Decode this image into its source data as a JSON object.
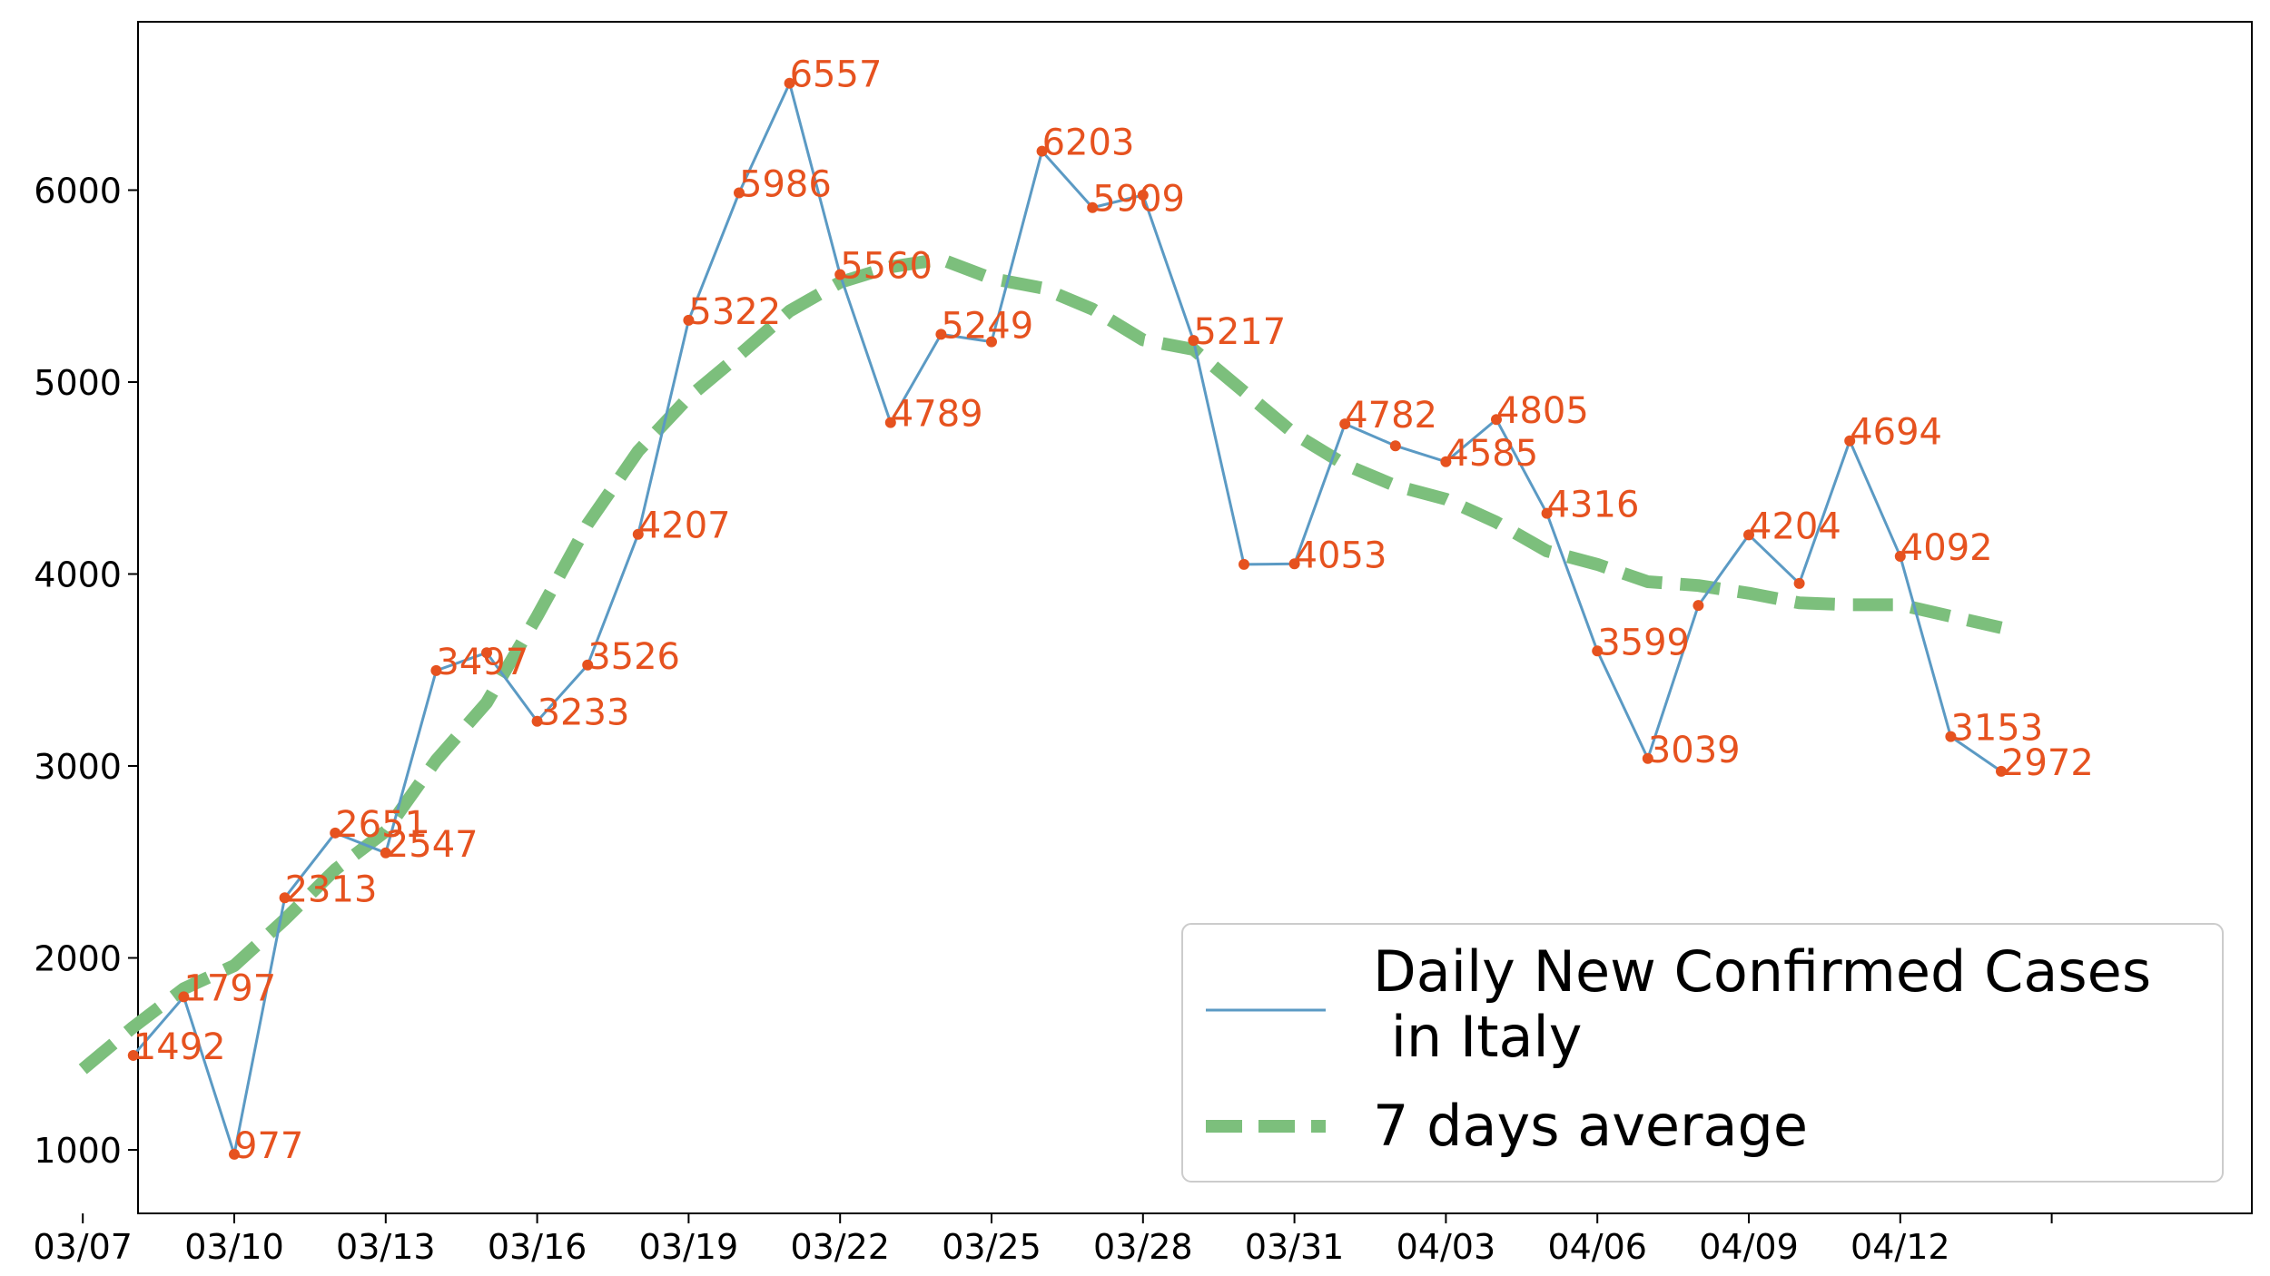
{
  "chart_data": {
    "type": "line",
    "title": "",
    "xlabel": "",
    "ylabel": "",
    "dates": [
      "03/08",
      "03/09",
      "03/10",
      "03/11",
      "03/12",
      "03/13",
      "03/14",
      "03/15",
      "03/16",
      "03/17",
      "03/18",
      "03/19",
      "03/20",
      "03/21",
      "03/22",
      "03/23",
      "03/24",
      "03/25",
      "03/26",
      "03/27",
      "03/28",
      "03/29",
      "03/30",
      "03/31",
      "04/01",
      "04/02",
      "04/03",
      "04/04",
      "04/05",
      "04/06",
      "04/07",
      "04/08",
      "04/09",
      "04/10",
      "04/11",
      "04/12",
      "04/13",
      "04/14"
    ],
    "x_ticks": [
      "03/07",
      "03/10",
      "03/13",
      "03/16",
      "03/19",
      "03/22",
      "03/25",
      "03/28",
      "03/31",
      "04/03",
      "04/06",
      "04/09",
      "04/12"
    ],
    "y_ticks": [
      1000,
      2000,
      3000,
      4000,
      5000,
      6000
    ],
    "ylim": [
      700,
      6900
    ],
    "series": [
      {
        "name": "Daily New Confirmed Cases\n in Italy",
        "legend_lines": [
          "Daily New Confirmed Cases",
          " in Italy"
        ],
        "color": "#5b9ac4",
        "marker_color": "#e6521f",
        "values": [
          1492,
          1797,
          977,
          2313,
          2651,
          2547,
          3497,
          3590,
          3233,
          3526,
          4207,
          5322,
          5986,
          6557,
          5560,
          4789,
          5249,
          5210,
          6203,
          5909,
          5974,
          5217,
          4050,
          4053,
          4782,
          4668,
          4585,
          4805,
          4316,
          3599,
          3039,
          3836,
          4204,
          3951,
          4694,
          4092,
          3153,
          2972
        ],
        "labels": [
          "1492",
          "1797",
          "977",
          "2313",
          "2651",
          "2547",
          "3497",
          "",
          "3233",
          "3526",
          "4207",
          "5322",
          "5986",
          "6557",
          "5560",
          "4789",
          "5249",
          "",
          "6203",
          "5909",
          "",
          "5217",
          "",
          "4053",
          "4782",
          "",
          "4585",
          "4805",
          "4316",
          "3599",
          "3039",
          "",
          "4204",
          "",
          "4694",
          "4092",
          "3153",
          "2972"
        ]
      },
      {
        "name": "7 days average",
        "legend_lines": [
          "7 days average"
        ],
        "color": "#7cbf7c",
        "x_offsets": [
          -1,
          0,
          1,
          2,
          3,
          4,
          5,
          6,
          7,
          8,
          9,
          10,
          11,
          12,
          13,
          14,
          15,
          16,
          17,
          18,
          19,
          20,
          21,
          22,
          23,
          24,
          25,
          26,
          27,
          28,
          29,
          30,
          31,
          32,
          33,
          34,
          35,
          36,
          37
        ],
        "values": [
          1420,
          1640,
          1840,
          1960,
          2200,
          2460,
          2660,
          3030,
          3330,
          3780,
          4260,
          4640,
          4920,
          5140,
          5370,
          5520,
          5600,
          5640,
          5540,
          5490,
          5380,
          5220,
          5170,
          4950,
          4730,
          4570,
          4460,
          4390,
          4270,
          4120,
          4050,
          3960,
          3940,
          3900,
          3850,
          3840,
          3840,
          3780,
          3720
        ]
      }
    ],
    "legend_position": "lower-right"
  }
}
